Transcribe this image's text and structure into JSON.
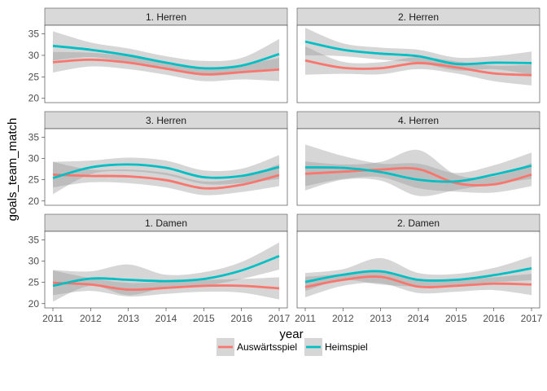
{
  "chart_data": {
    "type": "line",
    "subtype": "faceted smoothed lines with confidence bands",
    "xlabel": "year",
    "ylabel": "goals_team_match",
    "xlim": [
      2011,
      2017
    ],
    "ylim": [
      19,
      37
    ],
    "x_ticks": [
      2011,
      2012,
      2013,
      2014,
      2015,
      2016,
      2017
    ],
    "y_ticks": [
      20,
      25,
      30,
      35
    ],
    "grid": false,
    "legend": {
      "position": "bottom",
      "entries": [
        "Auswärtsspiel",
        "Heimspiel"
      ]
    },
    "colors": {
      "Auswärtsspiel": "#F8766D",
      "Heimspiel": "#00BFC4",
      "band": "#999999",
      "strip": "#d9d9d9",
      "panel_border": "#333333"
    },
    "x": [
      2011,
      2012,
      2013,
      2014,
      2015,
      2016,
      2017
    ],
    "panels": [
      {
        "title": "1. Herren",
        "series": [
          {
            "name": "Auswärtsspiel",
            "values": [
              28.4,
              29.0,
              28.3,
              26.9,
              25.6,
              26.1,
              26.7
            ],
            "lower": [
              26.0,
              27.4,
              26.8,
              25.5,
              24.0,
              24.4,
              24.0
            ],
            "upper": [
              30.8,
              30.6,
              29.8,
              28.3,
              27.2,
              27.8,
              29.4
            ]
          },
          {
            "name": "Heimspiel",
            "values": [
              32.2,
              31.3,
              30.0,
              28.3,
              27.0,
              27.6,
              30.3
            ],
            "lower": [
              28.8,
              29.6,
              28.4,
              26.8,
              25.3,
              25.8,
              26.8
            ],
            "upper": [
              35.6,
              33.0,
              31.6,
              29.8,
              28.7,
              29.4,
              33.8
            ]
          }
        ]
      },
      {
        "title": "2. Herren",
        "series": [
          {
            "name": "Auswärtsspiel",
            "values": [
              28.8,
              27.1,
              27.0,
              28.2,
              27.2,
              25.8,
              25.4
            ],
            "lower": [
              25.5,
              25.7,
              25.6,
              26.8,
              25.8,
              24.0,
              23.0
            ],
            "upper": [
              32.1,
              28.5,
              28.4,
              29.6,
              28.6,
              27.6,
              27.8
            ]
          },
          {
            "name": "Heimspiel",
            "values": [
              33.2,
              31.3,
              30.4,
              29.8,
              28.0,
              28.3,
              28.2
            ],
            "lower": [
              30.0,
              29.8,
              29.0,
              28.3,
              26.5,
              26.8,
              25.5
            ],
            "upper": [
              36.4,
              32.8,
              31.8,
              31.3,
              29.5,
              29.8,
              30.9
            ]
          }
        ]
      },
      {
        "title": "3. Herren",
        "series": [
          {
            "name": "Auswärtsspiel",
            "values": [
              26.2,
              25.9,
              25.8,
              24.9,
              23.0,
              23.8,
              26.1
            ],
            "lower": [
              23.2,
              24.4,
              24.2,
              23.2,
              21.4,
              22.1,
              23.5
            ],
            "upper": [
              29.2,
              27.4,
              27.4,
              26.6,
              24.6,
              25.5,
              28.7
            ]
          },
          {
            "name": "Heimspiel",
            "values": [
              25.4,
              27.9,
              28.6,
              27.8,
              25.6,
              25.9,
              28.0
            ],
            "lower": [
              21.6,
              26.3,
              27.0,
              26.1,
              24.0,
              24.2,
              25.2
            ],
            "upper": [
              29.2,
              29.5,
              30.2,
              29.5,
              27.2,
              27.6,
              30.8
            ]
          }
        ]
      },
      {
        "title": "4. Herren",
        "series": [
          {
            "name": "Auswärtsspiel",
            "values": [
              26.4,
              26.9,
              27.4,
              27.5,
              24.2,
              23.9,
              26.2
            ],
            "lower": [
              23.5,
              25.2,
              25.6,
              23.0,
              22.2,
              22.0,
              23.5
            ],
            "upper": [
              29.3,
              28.6,
              29.2,
              32.0,
              26.2,
              25.8,
              28.9
            ]
          },
          {
            "name": "Heimspiel",
            "values": [
              27.9,
              27.8,
              26.8,
              25.0,
              24.6,
              26.2,
              28.3
            ],
            "lower": [
              22.5,
              25.0,
              24.8,
              21.2,
              22.6,
              24.0,
              25.2
            ],
            "upper": [
              33.3,
              30.6,
              28.8,
              28.8,
              26.6,
              28.4,
              31.4
            ]
          }
        ]
      },
      {
        "title": "1. Damen",
        "series": [
          {
            "name": "Auswärtsspiel",
            "values": [
              24.9,
              24.5,
              23.3,
              23.7,
              24.2,
              24.2,
              23.6
            ],
            "lower": [
              22.0,
              23.0,
              21.7,
              22.3,
              22.8,
              22.6,
              21.0
            ],
            "upper": [
              27.8,
              26.0,
              24.9,
              25.1,
              25.6,
              25.8,
              26.2
            ]
          },
          {
            "name": "Heimspiel",
            "values": [
              24.2,
              25.9,
              25.6,
              25.3,
              25.8,
              27.8,
              31.2
            ],
            "lower": [
              20.5,
              24.2,
              22.0,
              23.8,
              24.2,
              25.8,
              28.0
            ],
            "upper": [
              27.9,
              27.6,
              29.2,
              26.8,
              27.4,
              29.8,
              34.4
            ]
          }
        ]
      },
      {
        "title": "2. Damen",
        "series": [
          {
            "name": "Auswärtsspiel",
            "values": [
              23.9,
              25.6,
              26.3,
              24.0,
              24.2,
              24.7,
              24.5
            ],
            "lower": [
              21.5,
              24.2,
              24.8,
              22.5,
              22.8,
              23.2,
              22.0
            ],
            "upper": [
              26.3,
              27.0,
              27.8,
              25.5,
              25.6,
              26.2,
              27.0
            ]
          },
          {
            "name": "Heimspiel",
            "values": [
              25.1,
              26.8,
              27.6,
              25.6,
              25.6,
              26.7,
              28.3
            ],
            "lower": [
              23.0,
              25.5,
              24.5,
              24.0,
              24.2,
              25.0,
              25.5
            ],
            "upper": [
              27.2,
              28.1,
              30.7,
              27.2,
              27.0,
              28.4,
              31.1
            ]
          }
        ]
      }
    ]
  }
}
